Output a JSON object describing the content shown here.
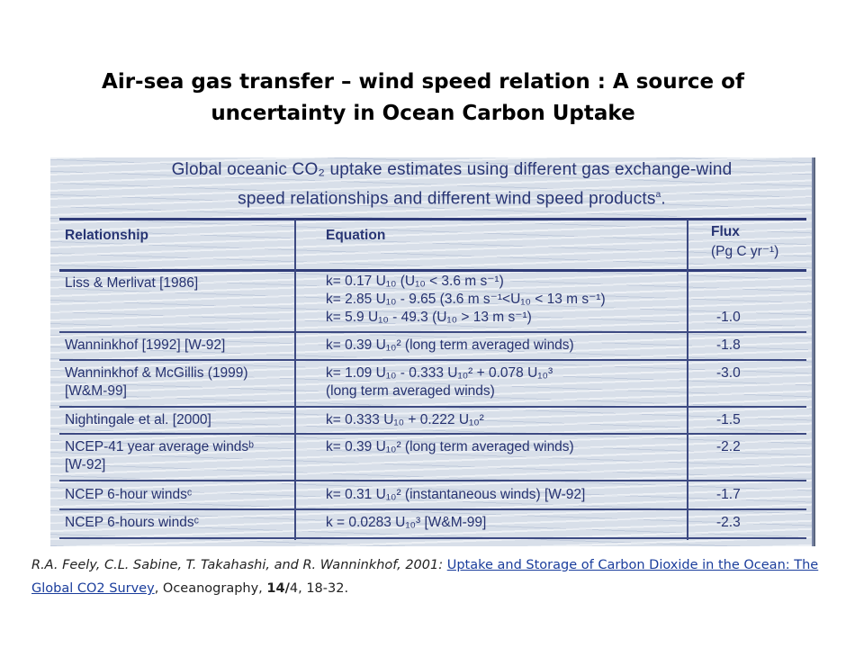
{
  "slide": {
    "title_line1": "Air-sea gas transfer – wind speed relation : A source of",
    "title_line2": "uncertainty  in Ocean Carbon Uptake"
  },
  "table": {
    "caption_line1": "Global oceanic CO₂ uptake estimates using different gas exchange-wind",
    "caption_line2": "speed relationships and different wind speed products",
    "caption_superscript": "a",
    "headers": {
      "relationship": "Relationship",
      "equation": "Equation",
      "flux_line1": "Flux",
      "flux_line2": "(Pg C yr⁻¹)"
    },
    "rows": [
      {
        "relationship": [
          "Liss & Merlivat [1986]"
        ],
        "equation": [
          "k= 0.17 U₁₀  (U₁₀  < 3.6 m s⁻¹)",
          "k= 2.85 U₁₀  - 9.65  (3.6 m s⁻¹<U₁₀  < 13 m s⁻¹)",
          "k= 5.9 U₁₀  - 49.3  (U₁₀  > 13 m s⁻¹)"
        ],
        "flux": "-1.0"
      },
      {
        "relationship": [
          "Wanninkhof [1992] [W-92]"
        ],
        "equation": [
          "k= 0.39 U₁₀²   (long term averaged winds)"
        ],
        "flux": "-1.8"
      },
      {
        "relationship": [
          "Wanninkhof & McGillis (1999)",
          "[W&M-99]"
        ],
        "equation": [
          "k= 1.09 U₁₀  - 0.333 U₁₀²  + 0.078 U₁₀³",
          "(long term averaged winds)"
        ],
        "flux": "-3.0"
      },
      {
        "relationship": [
          "Nightingale et al. [2000]"
        ],
        "equation": [
          "k= 0.333 U₁₀   + 0.222 U₁₀²"
        ],
        "flux": "-1.5"
      },
      {
        "relationship": [
          "NCEP-41 year average windsᵇ",
          "[W-92]"
        ],
        "equation": [
          "k= 0.39 U₁₀²  (long term averaged winds)"
        ],
        "flux": "-2.2"
      },
      {
        "relationship": [
          "NCEP 6-hour windsᶜ"
        ],
        "equation": [
          "k= 0.31 U₁₀²  (instantaneous winds) [W-92]"
        ],
        "flux": "-1.7"
      },
      {
        "relationship": [
          "NCEP 6-hours windsᶜ"
        ],
        "equation": [
          "k = 0.0283 U₁₀³   [W&M-99]"
        ],
        "flux": "-2.3"
      }
    ]
  },
  "citation": {
    "authors": "R.A.  Feely, C.L.  Sabine, T.  Takahashi, and R.  Wanninkhof, 2001: ",
    "link_text": "Uptake and Storage of Carbon Dioxide in the Ocean: The Global CO2 Survey",
    "tail_part1": ", Oceanography, ",
    "volume": "14/",
    "tail_part2": "4, 18-32."
  }
}
